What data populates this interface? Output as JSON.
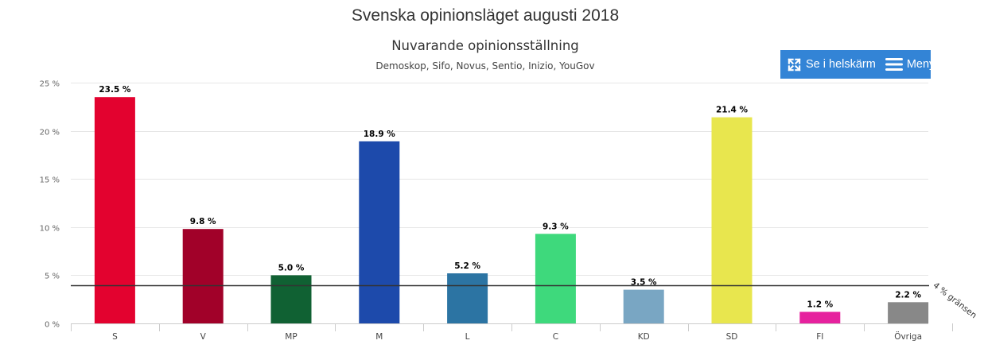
{
  "header": {
    "title": "Svenska opinionsläget augusti 2018",
    "subtitle": "Nuvarande opinionsställning",
    "sources": "Demoskop, Sifo, Novus, Sentio, Inizio, YouGov"
  },
  "toolbar": {
    "fullscreen_label": "Se i helskärm",
    "menu_label": "Meny"
  },
  "chart_data": {
    "type": "bar",
    "title": "Nuvarande opinionsställning",
    "subtitle": "Demoskop, Sifo, Novus, Sentio, Inizio, YouGov",
    "categories": [
      "S",
      "V",
      "MP",
      "M",
      "L",
      "C",
      "KD",
      "SD",
      "FI",
      "Övriga"
    ],
    "values": [
      23.5,
      9.8,
      5.0,
      18.9,
      5.2,
      9.3,
      3.5,
      21.4,
      1.2,
      2.2
    ],
    "data_labels": [
      "23.5 %",
      "9.8 %",
      "5.0 %",
      "18.9 %",
      "5.2 %",
      "9.3 %",
      "3.5 %",
      "21.4 %",
      "1.2 %",
      "2.2 %"
    ],
    "colors": [
      "#e3022f",
      "#a10129",
      "#106133",
      "#1d4aab",
      "#2c74a3",
      "#3ed97c",
      "#79a6c3",
      "#e8e64e",
      "#e6219e",
      "#888888"
    ],
    "ylim": [
      0,
      25
    ],
    "yticks": [
      0,
      5,
      10,
      15,
      20,
      25
    ],
    "ytick_labels": [
      "0 %",
      "5 %",
      "10 %",
      "15 %",
      "20 %",
      "25 %"
    ],
    "xlabel": "",
    "ylabel": "",
    "grid": true,
    "threshold": {
      "value": 4,
      "label": "4 % gränsen",
      "color": "#333333"
    },
    "axis_color": "#cccccc",
    "grid_color": "#e6e6e6"
  }
}
